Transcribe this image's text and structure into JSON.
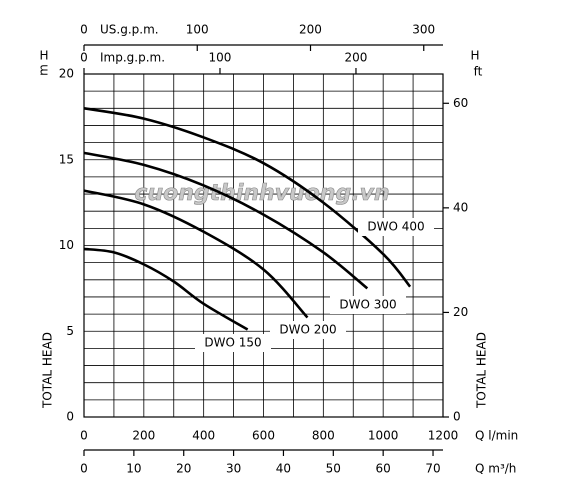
{
  "chart_data": {
    "type": "line",
    "watermark": "cuongthinhvuong.vn",
    "ylabel": "TOTAL HEAD",
    "yunit_top": "H",
    "yunit": "m",
    "y2label": "TOTAL HEAD",
    "y2unit_top": "H",
    "y2unit": "ft",
    "xlabel": "Q l/min",
    "x2label": "Q m³/h",
    "xlim": [
      0,
      1200
    ],
    "xticks": [
      0,
      200,
      400,
      600,
      800,
      1000,
      1200
    ],
    "ylim": [
      0,
      20
    ],
    "yticks": [
      0,
      5,
      10,
      15,
      20
    ],
    "y2lim": [
      0,
      65.6
    ],
    "y2ticks": [
      0,
      20,
      40,
      60
    ],
    "x2lim": [
      0,
      72
    ],
    "x2ticks": [
      0,
      10,
      20,
      30,
      40,
      50,
      60,
      70
    ],
    "top_axes": [
      {
        "label": "US.g.p.m.",
        "xlim": [
          0,
          317
        ],
        "xticks": [
          0,
          100,
          200,
          300
        ]
      },
      {
        "label": "Imp.g.p.m.",
        "xlim": [
          0,
          264
        ],
        "xticks": [
          0,
          100,
          200
        ]
      }
    ],
    "grid": true,
    "series": [
      {
        "name": "DWO 400",
        "color": "#000000",
        "x": [
          0,
          200,
          400,
          600,
          800,
          1000,
          1090
        ],
        "values": [
          18,
          17.4,
          16.3,
          14.8,
          12.5,
          9.5,
          7.6
        ]
      },
      {
        "name": "DWO 300",
        "color": "#000000",
        "x": [
          0,
          200,
          400,
          600,
          800,
          947
        ],
        "values": [
          15.4,
          14.7,
          13.5,
          11.8,
          9.6,
          7.5
        ]
      },
      {
        "name": "DWO 200",
        "color": "#000000",
        "x": [
          0,
          200,
          400,
          600,
          747
        ],
        "values": [
          13.2,
          12.4,
          10.8,
          8.6,
          5.8
        ]
      },
      {
        "name": "DWO 150",
        "color": "#000000",
        "x": [
          0,
          100,
          200,
          300,
          400,
          547
        ],
        "values": [
          9.8,
          9.6,
          8.9,
          7.9,
          6.6,
          5.1
        ]
      }
    ]
  }
}
